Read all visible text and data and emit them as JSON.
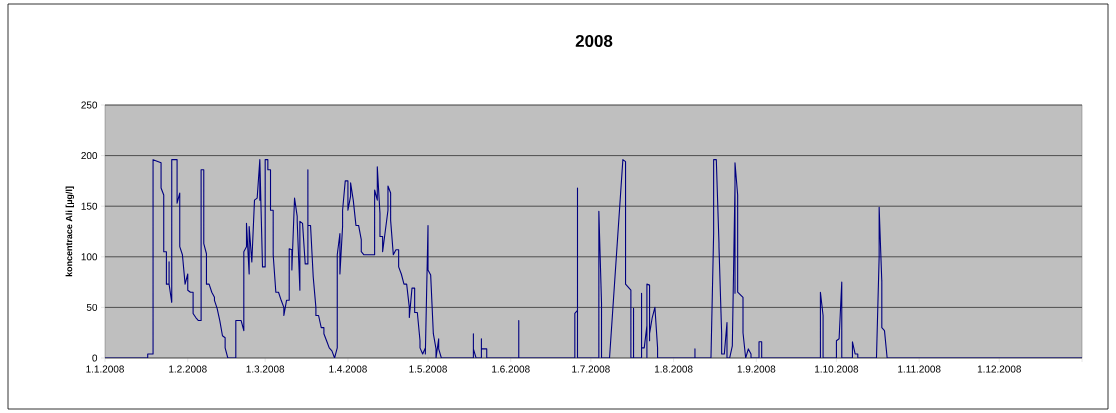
{
  "chart_data": {
    "type": "line",
    "title": "2008",
    "ylabel": "koncentrace Ali [µg/l]",
    "color": "#000080",
    "marker": "none",
    "line_style": "solid",
    "grid": "y",
    "xlim": [
      "2008-01-01",
      "2009-01-01"
    ],
    "ylim": [
      0,
      250
    ],
    "yticks": [
      0,
      50,
      100,
      150,
      200,
      250
    ],
    "xticks": [
      {
        "value": "2008-01-01",
        "label": "1.1.2008"
      },
      {
        "value": "2008-02-01",
        "label": "1.2.2008"
      },
      {
        "value": "2008-03-01",
        "label": "1.3.2008"
      },
      {
        "value": "2008-04-01",
        "label": "1.4.2008"
      },
      {
        "value": "2008-05-01",
        "label": "1.5.2008"
      },
      {
        "value": "2008-06-01",
        "label": "1.6.2008"
      },
      {
        "value": "2008-07-01",
        "label": "1.7.2008"
      },
      {
        "value": "2008-08-01",
        "label": "1.8.2008"
      },
      {
        "value": "2008-09-01",
        "label": "1.9.2008"
      },
      {
        "value": "2008-10-01",
        "label": "1.10.2008"
      },
      {
        "value": "2008-11-01",
        "label": "1.11.2008"
      },
      {
        "value": "2008-12-01",
        "label": "1.12.2008"
      },
      {
        "value": "2009-01-01",
        "label": null
      }
    ],
    "x": [
      "2008-01-01",
      "2008-01-17",
      "2008-01-17",
      "2008-01-19",
      "2008-01-19",
      "2008-01-22",
      "2008-01-22",
      "2008-01-23",
      "2008-01-23",
      "2008-01-24",
      "2008-01-24",
      "2008-01-25",
      "2008-01-25",
      "2008-01-25",
      "2008-01-26",
      "2008-01-26",
      "2008-01-28",
      "2008-01-28",
      "2008-01-29",
      "2008-01-29",
      "2008-01-30",
      "2008-01-31",
      "2008-02-01",
      "2008-02-01",
      "2008-02-02",
      "2008-02-03",
      "2008-02-03",
      "2008-02-04",
      "2008-02-05",
      "2008-02-06",
      "2008-02-06",
      "2008-02-07",
      "2008-02-07",
      "2008-02-08",
      "2008-02-08",
      "2008-02-09",
      "2008-02-10",
      "2008-02-11",
      "2008-02-11",
      "2008-02-12",
      "2008-02-13",
      "2008-02-14",
      "2008-02-15",
      "2008-02-15",
      "2008-02-16",
      "2008-02-19",
      "2008-02-19",
      "2008-02-21",
      "2008-02-22",
      "2008-02-22",
      "2008-02-22",
      "2008-02-22",
      "2008-02-23",
      "2008-02-23",
      "2008-02-24",
      "2008-02-24",
      "2008-02-25",
      "2008-02-26",
      "2008-02-27",
      "2008-02-28",
      "2008-02-28",
      "2008-02-28",
      "2008-02-29",
      "2008-03-01",
      "2008-03-01",
      "2008-03-02",
      "2008-03-02",
      "2008-03-03",
      "2008-03-03",
      "2008-03-04",
      "2008-03-04",
      "2008-03-05",
      "2008-03-06",
      "2008-03-07",
      "2008-03-08",
      "2008-03-08",
      "2008-03-09",
      "2008-03-10",
      "2008-03-10",
      "2008-03-11",
      "2008-03-11",
      "2008-03-12",
      "2008-03-13",
      "2008-03-13",
      "2008-03-14",
      "2008-03-14",
      "2008-03-15",
      "2008-03-16",
      "2008-03-17",
      "2008-03-17",
      "2008-03-17",
      "2008-03-18",
      "2008-03-19",
      "2008-03-20",
      "2008-03-20",
      "2008-03-21",
      "2008-03-22",
      "2008-03-23",
      "2008-03-23",
      "2008-03-24",
      "2008-03-25",
      "2008-03-26",
      "2008-03-27",
      "2008-03-28",
      "2008-03-28",
      "2008-03-29",
      "2008-03-29",
      "2008-03-30",
      "2008-03-30",
      "2008-03-31",
      "2008-04-01",
      "2008-04-01",
      "2008-04-02",
      "2008-04-02",
      "2008-04-03",
      "2008-04-04",
      "2008-04-05",
      "2008-04-06",
      "2008-04-06",
      "2008-04-07",
      "2008-04-11",
      "2008-04-11",
      "2008-04-12",
      "2008-04-12",
      "2008-04-13",
      "2008-04-13",
      "2008-04-14",
      "2008-04-14",
      "2008-04-16",
      "2008-04-16",
      "2008-04-17",
      "2008-04-17",
      "2008-04-18",
      "2008-04-19",
      "2008-04-20",
      "2008-04-20",
      "2008-04-21",
      "2008-04-22",
      "2008-04-23",
      "2008-04-24",
      "2008-04-24",
      "2008-04-25",
      "2008-04-26",
      "2008-04-26",
      "2008-04-27",
      "2008-04-28",
      "2008-04-28",
      "2008-04-29",
      "2008-04-30",
      "2008-04-30",
      "2008-05-01",
      "2008-05-01",
      "2008-05-02",
      "2008-05-03",
      "2008-05-04",
      "2008-05-04",
      "2008-05-05",
      "2008-05-05",
      "2008-05-06",
      "2008-05-18",
      "2008-05-18",
      "2008-05-18",
      "2008-05-19",
      "2008-05-21",
      "2008-05-21",
      "2008-05-21",
      "2008-05-23",
      "2008-05-23",
      "2008-06-04",
      "2008-06-04",
      "2008-06-04",
      "2008-06-25",
      "2008-06-25",
      "2008-06-26",
      "2008-06-26",
      "2008-06-26",
      "2008-07-04",
      "2008-07-04",
      "2008-07-05",
      "2008-07-05",
      "2008-07-08",
      "2008-07-13",
      "2008-07-14",
      "2008-07-14",
      "2008-07-16",
      "2008-07-16",
      "2008-07-17",
      "2008-07-17",
      "2008-07-17",
      "2008-07-20",
      "2008-07-20",
      "2008-07-20",
      "2008-07-20",
      "2008-07-21",
      "2008-07-22",
      "2008-07-22",
      "2008-07-22",
      "2008-07-23",
      "2008-07-23",
      "2008-07-23",
      "2008-07-24",
      "2008-07-25",
      "2008-07-26",
      "2008-07-26",
      "2008-08-09",
      "2008-08-09",
      "2008-08-09",
      "2008-08-15",
      "2008-08-16",
      "2008-08-16",
      "2008-08-17",
      "2008-08-18",
      "2008-08-18",
      "2008-08-19",
      "2008-08-19",
      "2008-08-20",
      "2008-08-21",
      "2008-08-21",
      "2008-08-22",
      "2008-08-23",
      "2008-08-24",
      "2008-08-24",
      "2008-08-24",
      "2008-08-25",
      "2008-08-25",
      "2008-08-27",
      "2008-08-27",
      "2008-08-28",
      "2008-08-29",
      "2008-08-30",
      "2008-08-30",
      "2008-09-02",
      "2008-09-02",
      "2008-09-03",
      "2008-09-03",
      "2008-09-25",
      "2008-09-25",
      "2008-09-26",
      "2008-09-26",
      "2008-10-01",
      "2008-10-01",
      "2008-10-02",
      "2008-10-03",
      "2008-10-03",
      "2008-10-03",
      "2008-10-07",
      "2008-10-07",
      "2008-10-08",
      "2008-10-09",
      "2008-10-09",
      "2008-10-16",
      "2008-10-17",
      "2008-10-17",
      "2008-10-18",
      "2008-10-18",
      "2008-10-18",
      "2008-10-19",
      "2008-10-20",
      "2009-01-01"
    ],
    "values": [
      0,
      0,
      4,
      4,
      196,
      193,
      168,
      161,
      105,
      105,
      73,
      73,
      95,
      73,
      55,
      196,
      196,
      153,
      163,
      110,
      102,
      73,
      83,
      67,
      65,
      65,
      44,
      40,
      37,
      37,
      186,
      186,
      113,
      103,
      73,
      73,
      65,
      60,
      57,
      49,
      37,
      22,
      20,
      10,
      0,
      0,
      37,
      37,
      27,
      57,
      50,
      105,
      110,
      133,
      83,
      130,
      95,
      156,
      158,
      196,
      156,
      196,
      90,
      90,
      196,
      196,
      186,
      186,
      146,
      146,
      102,
      65,
      65,
      57,
      50,
      42,
      57,
      57,
      108,
      107,
      87,
      158,
      140,
      135,
      67,
      135,
      133,
      93,
      93,
      186,
      131,
      131,
      80,
      50,
      42,
      42,
      30,
      30,
      24,
      17,
      10,
      7,
      0,
      10,
      102,
      123,
      83,
      130,
      146,
      175,
      175,
      146,
      160,
      173,
      156,
      131,
      131,
      117,
      105,
      102,
      102,
      166,
      156,
      189,
      143,
      120,
      120,
      105,
      146,
      170,
      163,
      136,
      102,
      107,
      107,
      90,
      83,
      73,
      73,
      50,
      40,
      69,
      69,
      45,
      45,
      17,
      10,
      4,
      10,
      4,
      131,
      87,
      82,
      24,
      9,
      0,
      19,
      9,
      0,
      0,
      24,
      9,
      0,
      0,
      19,
      9,
      9,
      0,
      0,
      37,
      0,
      0,
      44,
      47,
      168,
      0,
      0,
      145,
      54,
      0,
      0,
      196,
      194,
      73,
      67,
      0,
      0,
      49,
      0,
      0,
      64,
      0,
      10,
      10,
      32,
      0,
      73,
      72,
      17,
      24,
      40,
      50,
      10,
      0,
      0,
      9,
      0,
      0,
      123,
      196,
      196,
      113,
      110,
      24,
      4,
      4,
      35,
      0,
      0,
      12,
      171,
      64,
      193,
      161,
      65,
      60,
      25,
      0,
      9,
      4,
      0,
      0,
      16,
      16,
      0,
      0,
      65,
      42,
      0,
      0,
      17,
      19,
      75,
      19,
      0,
      0,
      16,
      4,
      4,
      0,
      0,
      100,
      149,
      75,
      77,
      30,
      27,
      0,
      0
    ]
  }
}
